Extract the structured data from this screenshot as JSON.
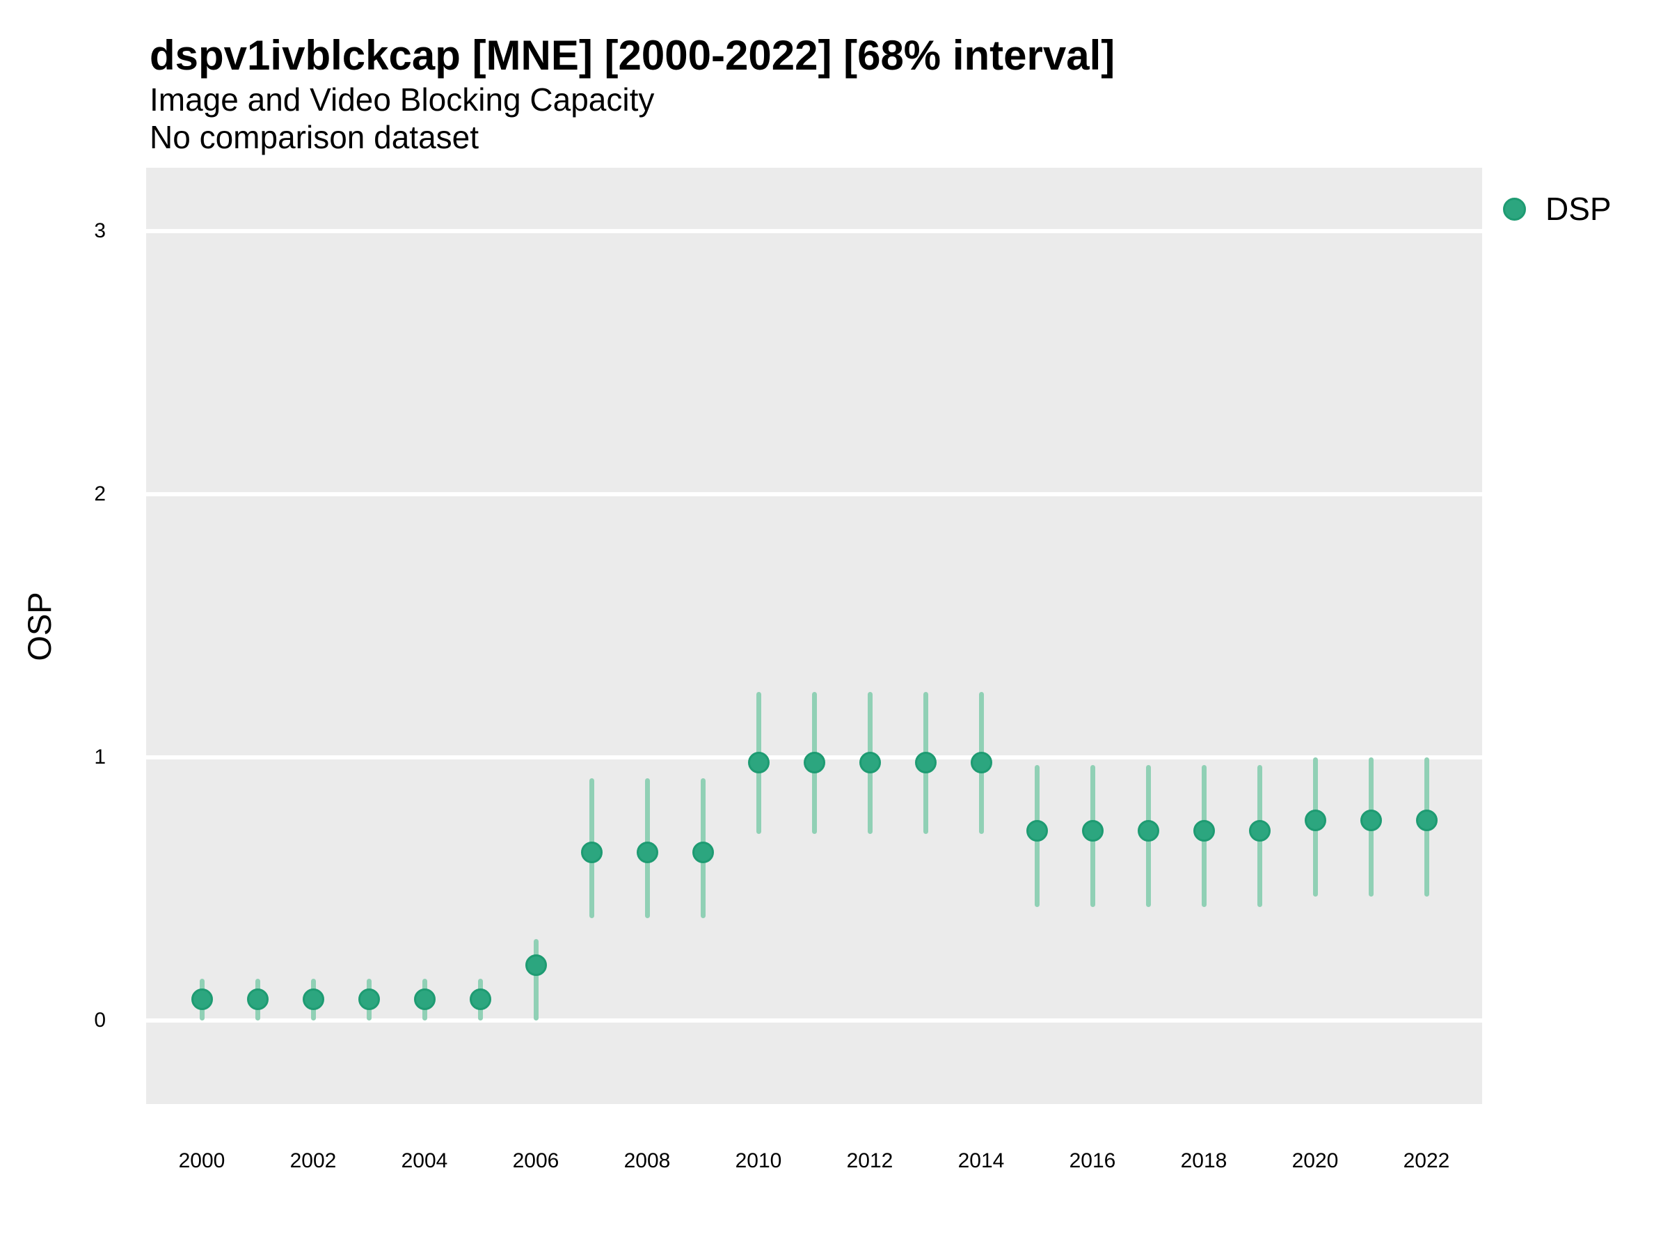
{
  "chart_data": {
    "type": "pointrange",
    "title": "dspv1ivblckcap [MNE] [2000-2022] [68% interval]",
    "subtitle": "Image and Video Blocking Capacity",
    "subtitle2": "No comparison dataset",
    "ylabel": "OSP",
    "xlabel": "",
    "interval_note": "68% interval",
    "legend": [
      {
        "label": "DSP",
        "color": "#2CA67F"
      }
    ],
    "legend_position": "right-top",
    "grid": "horizontal-major-only",
    "x_ticks": [
      2000,
      2002,
      2004,
      2006,
      2008,
      2010,
      2012,
      2014,
      2016,
      2018,
      2020,
      2022
    ],
    "y_ticks": [
      0,
      1,
      2,
      3
    ],
    "xlim": [
      1999,
      2023
    ],
    "ylim": [
      -0.32,
      3.25
    ],
    "colors": {
      "point_fill": "#2CA67F",
      "point_stroke": "#1E9B72",
      "interval_bar": "#90D0B5",
      "panel_background": "#EBEBEB",
      "gridline": "#FFFFFF",
      "text": "#000000"
    },
    "series": [
      {
        "name": "DSP",
        "points": [
          {
            "year": 2000,
            "mid": 0.08,
            "lo": 0.0,
            "hi": 0.16
          },
          {
            "year": 2001,
            "mid": 0.08,
            "lo": 0.0,
            "hi": 0.16
          },
          {
            "year": 2002,
            "mid": 0.08,
            "lo": 0.0,
            "hi": 0.16
          },
          {
            "year": 2003,
            "mid": 0.08,
            "lo": 0.0,
            "hi": 0.16
          },
          {
            "year": 2004,
            "mid": 0.08,
            "lo": 0.0,
            "hi": 0.16
          },
          {
            "year": 2005,
            "mid": 0.08,
            "lo": 0.0,
            "hi": 0.16
          },
          {
            "year": 2006,
            "mid": 0.21,
            "lo": 0.0,
            "hi": 0.31
          },
          {
            "year": 2007,
            "mid": 0.64,
            "lo": 0.39,
            "hi": 0.92
          },
          {
            "year": 2008,
            "mid": 0.64,
            "lo": 0.39,
            "hi": 0.92
          },
          {
            "year": 2009,
            "mid": 0.64,
            "lo": 0.39,
            "hi": 0.92
          },
          {
            "year": 2010,
            "mid": 0.98,
            "lo": 0.71,
            "hi": 1.25
          },
          {
            "year": 2011,
            "mid": 0.98,
            "lo": 0.71,
            "hi": 1.25
          },
          {
            "year": 2012,
            "mid": 0.98,
            "lo": 0.71,
            "hi": 1.25
          },
          {
            "year": 2013,
            "mid": 0.98,
            "lo": 0.71,
            "hi": 1.25
          },
          {
            "year": 2014,
            "mid": 0.98,
            "lo": 0.71,
            "hi": 1.25
          },
          {
            "year": 2015,
            "mid": 0.72,
            "lo": 0.43,
            "hi": 0.97
          },
          {
            "year": 2016,
            "mid": 0.72,
            "lo": 0.43,
            "hi": 0.97
          },
          {
            "year": 2017,
            "mid": 0.72,
            "lo": 0.43,
            "hi": 0.97
          },
          {
            "year": 2018,
            "mid": 0.72,
            "lo": 0.43,
            "hi": 0.97
          },
          {
            "year": 2019,
            "mid": 0.72,
            "lo": 0.43,
            "hi": 0.97
          },
          {
            "year": 2020,
            "mid": 0.76,
            "lo": 0.47,
            "hi": 1.0
          },
          {
            "year": 2021,
            "mid": 0.76,
            "lo": 0.47,
            "hi": 1.0
          },
          {
            "year": 2022,
            "mid": 0.76,
            "lo": 0.47,
            "hi": 1.0
          }
        ]
      }
    ]
  }
}
